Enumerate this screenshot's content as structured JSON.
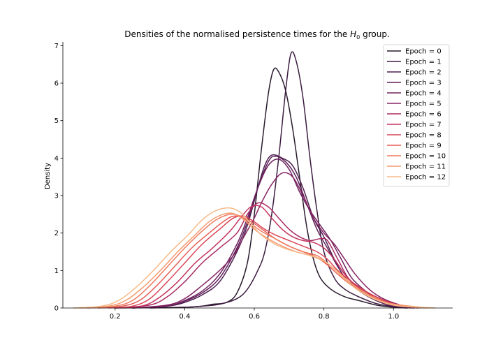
{
  "chart_data": {
    "type": "line",
    "title": "Densities of the normalised persistence times for the H0 group.",
    "title_parts": {
      "pre": "Densities of the normalised persistence times for the ",
      "math_main": "H",
      "math_sub": "0",
      "post": " group."
    },
    "xlabel": "",
    "ylabel": "Density",
    "xlim": [
      0.05,
      1.17
    ],
    "ylim": [
      0,
      7.1
    ],
    "xticks": [
      0.2,
      0.4,
      0.6,
      0.8,
      1.0
    ],
    "xtick_labels": [
      "0.2",
      "0.4",
      "0.6",
      "0.8",
      "1.0"
    ],
    "yticks": [
      0,
      1,
      2,
      3,
      4,
      5,
      6,
      7
    ],
    "ytick_labels": [
      "0",
      "1",
      "2",
      "3",
      "4",
      "5",
      "6",
      "7"
    ],
    "grid": false,
    "legend_position": "top-right",
    "series": [
      {
        "name": "Epoch = 0",
        "color": "#2a1a2e",
        "points": [
          [
            0.2,
            0
          ],
          [
            0.3,
            0.01
          ],
          [
            0.4,
            0.02
          ],
          [
            0.45,
            0.05
          ],
          [
            0.48,
            0.1
          ],
          [
            0.52,
            0.15
          ],
          [
            0.55,
            0.4
          ],
          [
            0.58,
            1.2
          ],
          [
            0.6,
            2.5
          ],
          [
            0.62,
            4.2
          ],
          [
            0.64,
            5.7
          ],
          [
            0.655,
            6.35
          ],
          [
            0.67,
            6.3
          ],
          [
            0.69,
            5.8
          ],
          [
            0.71,
            4.8
          ],
          [
            0.73,
            3.5
          ],
          [
            0.75,
            2.2
          ],
          [
            0.77,
            1.3
          ],
          [
            0.79,
            0.8
          ],
          [
            0.82,
            0.5
          ],
          [
            0.86,
            0.3
          ],
          [
            0.9,
            0.2
          ],
          [
            0.95,
            0.08
          ],
          [
            1.0,
            0.02
          ],
          [
            1.04,
            0
          ]
        ]
      },
      {
        "name": "Epoch = 1",
        "color": "#3c1c40",
        "points": [
          [
            0.3,
            0
          ],
          [
            0.4,
            0.02
          ],
          [
            0.45,
            0.05
          ],
          [
            0.5,
            0.1
          ],
          [
            0.55,
            0.25
          ],
          [
            0.58,
            0.5
          ],
          [
            0.61,
            1.0
          ],
          [
            0.63,
            1.5
          ],
          [
            0.65,
            2.5
          ],
          [
            0.67,
            4.0
          ],
          [
            0.69,
            5.8
          ],
          [
            0.705,
            6.78
          ],
          [
            0.72,
            6.6
          ],
          [
            0.74,
            5.6
          ],
          [
            0.76,
            4.0
          ],
          [
            0.78,
            2.6
          ],
          [
            0.8,
            1.5
          ],
          [
            0.83,
            0.8
          ],
          [
            0.86,
            0.5
          ],
          [
            0.9,
            0.3
          ],
          [
            0.95,
            0.12
          ],
          [
            1.0,
            0.04
          ],
          [
            1.04,
            0
          ]
        ]
      },
      {
        "name": "Epoch = 2",
        "color": "#4e1f4f",
        "points": [
          [
            0.25,
            0
          ],
          [
            0.35,
            0.05
          ],
          [
            0.4,
            0.15
          ],
          [
            0.45,
            0.35
          ],
          [
            0.5,
            0.7
          ],
          [
            0.55,
            1.5
          ],
          [
            0.58,
            2.2
          ],
          [
            0.61,
            3.2
          ],
          [
            0.63,
            3.8
          ],
          [
            0.65,
            4.08
          ],
          [
            0.68,
            4.0
          ],
          [
            0.71,
            3.8
          ],
          [
            0.74,
            3.2
          ],
          [
            0.77,
            2.4
          ],
          [
            0.8,
            1.9
          ],
          [
            0.83,
            1.3
          ],
          [
            0.86,
            0.9
          ],
          [
            0.9,
            0.5
          ],
          [
            0.95,
            0.2
          ],
          [
            1.0,
            0.05
          ],
          [
            1.05,
            0
          ]
        ]
      },
      {
        "name": "Epoch = 3",
        "color": "#5e2159",
        "points": [
          [
            0.25,
            0
          ],
          [
            0.35,
            0.05
          ],
          [
            0.4,
            0.18
          ],
          [
            0.45,
            0.4
          ],
          [
            0.5,
            0.8
          ],
          [
            0.55,
            1.6
          ],
          [
            0.58,
            2.3
          ],
          [
            0.61,
            3.2
          ],
          [
            0.64,
            3.9
          ],
          [
            0.66,
            4.05
          ],
          [
            0.69,
            3.9
          ],
          [
            0.72,
            3.5
          ],
          [
            0.75,
            2.8
          ],
          [
            0.78,
            2.1
          ],
          [
            0.81,
            1.6
          ],
          [
            0.84,
            1.1
          ],
          [
            0.87,
            0.7
          ],
          [
            0.91,
            0.4
          ],
          [
            0.95,
            0.2
          ],
          [
            1.0,
            0.05
          ],
          [
            1.06,
            0
          ]
        ]
      },
      {
        "name": "Epoch = 4",
        "color": "#6e235f",
        "points": [
          [
            0.25,
            0
          ],
          [
            0.35,
            0.06
          ],
          [
            0.4,
            0.2
          ],
          [
            0.45,
            0.45
          ],
          [
            0.5,
            0.9
          ],
          [
            0.55,
            1.7
          ],
          [
            0.58,
            2.4
          ],
          [
            0.61,
            3.2
          ],
          [
            0.64,
            3.8
          ],
          [
            0.67,
            3.97
          ],
          [
            0.7,
            3.7
          ],
          [
            0.73,
            3.1
          ],
          [
            0.76,
            2.6
          ],
          [
            0.79,
            2.2
          ],
          [
            0.82,
            1.8
          ],
          [
            0.85,
            1.3
          ],
          [
            0.88,
            0.8
          ],
          [
            0.92,
            0.45
          ],
          [
            0.96,
            0.2
          ],
          [
            1.0,
            0.06
          ],
          [
            1.06,
            0
          ]
        ]
      },
      {
        "name": "Epoch = 5",
        "color": "#852563",
        "points": [
          [
            0.25,
            0
          ],
          [
            0.35,
            0.08
          ],
          [
            0.4,
            0.25
          ],
          [
            0.45,
            0.6
          ],
          [
            0.5,
            1.0
          ],
          [
            0.54,
            1.4
          ],
          [
            0.57,
            1.9
          ],
          [
            0.6,
            2.4
          ],
          [
            0.62,
            2.8
          ],
          [
            0.65,
            3.3
          ],
          [
            0.68,
            3.6
          ],
          [
            0.71,
            3.5
          ],
          [
            0.74,
            3.0
          ],
          [
            0.77,
            2.4
          ],
          [
            0.8,
            2.0
          ],
          [
            0.83,
            1.7
          ],
          [
            0.86,
            1.3
          ],
          [
            0.89,
            0.9
          ],
          [
            0.93,
            0.5
          ],
          [
            0.97,
            0.25
          ],
          [
            1.02,
            0.08
          ],
          [
            1.07,
            0
          ]
        ]
      },
      {
        "name": "Epoch = 6",
        "color": "#a82b63",
        "points": [
          [
            0.2,
            0
          ],
          [
            0.3,
            0.08
          ],
          [
            0.35,
            0.3
          ],
          [
            0.4,
            0.7
          ],
          [
            0.45,
            1.2
          ],
          [
            0.5,
            1.6
          ],
          [
            0.55,
            2.0
          ],
          [
            0.58,
            2.5
          ],
          [
            0.61,
            2.8
          ],
          [
            0.64,
            2.7
          ],
          [
            0.67,
            2.4
          ],
          [
            0.7,
            2.1
          ],
          [
            0.73,
            1.9
          ],
          [
            0.76,
            1.8
          ],
          [
            0.79,
            1.85
          ],
          [
            0.81,
            1.8
          ],
          [
            0.84,
            1.3
          ],
          [
            0.87,
            0.8
          ],
          [
            0.91,
            0.45
          ],
          [
            0.95,
            0.25
          ],
          [
            1.0,
            0.1
          ],
          [
            1.06,
            0
          ]
        ]
      },
      {
        "name": "Epoch = 7",
        "color": "#c3345e",
        "points": [
          [
            0.2,
            0
          ],
          [
            0.28,
            0.06
          ],
          [
            0.33,
            0.3
          ],
          [
            0.38,
            0.7
          ],
          [
            0.43,
            1.2
          ],
          [
            0.48,
            1.6
          ],
          [
            0.53,
            2.05
          ],
          [
            0.56,
            2.4
          ],
          [
            0.59,
            2.7
          ],
          [
            0.62,
            2.7
          ],
          [
            0.65,
            2.4
          ],
          [
            0.68,
            2.1
          ],
          [
            0.71,
            1.9
          ],
          [
            0.74,
            1.8
          ],
          [
            0.77,
            1.75
          ],
          [
            0.8,
            1.6
          ],
          [
            0.83,
            1.3
          ],
          [
            0.86,
            0.9
          ],
          [
            0.9,
            0.55
          ],
          [
            0.95,
            0.3
          ],
          [
            1.0,
            0.12
          ],
          [
            1.07,
            0
          ]
        ]
      },
      {
        "name": "Epoch = 8",
        "color": "#d94659",
        "points": [
          [
            0.18,
            0
          ],
          [
            0.25,
            0.05
          ],
          [
            0.3,
            0.25
          ],
          [
            0.35,
            0.7
          ],
          [
            0.4,
            1.2
          ],
          [
            0.45,
            1.7
          ],
          [
            0.5,
            2.1
          ],
          [
            0.54,
            2.4
          ],
          [
            0.57,
            2.45
          ],
          [
            0.6,
            2.3
          ],
          [
            0.63,
            2.1
          ],
          [
            0.66,
            1.95
          ],
          [
            0.7,
            1.8
          ],
          [
            0.74,
            1.65
          ],
          [
            0.78,
            1.5
          ],
          [
            0.81,
            1.3
          ],
          [
            0.84,
            1.0
          ],
          [
            0.88,
            0.7
          ],
          [
            0.92,
            0.45
          ],
          [
            0.96,
            0.25
          ],
          [
            1.0,
            0.1
          ],
          [
            1.07,
            0
          ]
        ]
      },
      {
        "name": "Epoch = 9",
        "color": "#e65e57",
        "points": [
          [
            0.15,
            0
          ],
          [
            0.22,
            0.05
          ],
          [
            0.27,
            0.2
          ],
          [
            0.32,
            0.6
          ],
          [
            0.37,
            1.1
          ],
          [
            0.42,
            1.6
          ],
          [
            0.47,
            2.0
          ],
          [
            0.51,
            2.3
          ],
          [
            0.54,
            2.45
          ],
          [
            0.57,
            2.4
          ],
          [
            0.6,
            2.25
          ],
          [
            0.63,
            2.05
          ],
          [
            0.66,
            1.85
          ],
          [
            0.7,
            1.65
          ],
          [
            0.74,
            1.5
          ],
          [
            0.78,
            1.35
          ],
          [
            0.81,
            1.15
          ],
          [
            0.84,
            0.9
          ],
          [
            0.88,
            0.6
          ],
          [
            0.92,
            0.4
          ],
          [
            0.96,
            0.22
          ],
          [
            1.0,
            0.1
          ],
          [
            1.08,
            0
          ]
        ]
      },
      {
        "name": "Epoch = 10",
        "color": "#ef7a5e",
        "points": [
          [
            0.12,
            0
          ],
          [
            0.2,
            0.05
          ],
          [
            0.25,
            0.2
          ],
          [
            0.3,
            0.6
          ],
          [
            0.35,
            1.1
          ],
          [
            0.4,
            1.6
          ],
          [
            0.45,
            2.05
          ],
          [
            0.49,
            2.35
          ],
          [
            0.53,
            2.5
          ],
          [
            0.56,
            2.45
          ],
          [
            0.59,
            2.25
          ],
          [
            0.62,
            2.05
          ],
          [
            0.66,
            1.85
          ],
          [
            0.7,
            1.65
          ],
          [
            0.74,
            1.5
          ],
          [
            0.78,
            1.4
          ],
          [
            0.81,
            1.2
          ],
          [
            0.84,
            0.95
          ],
          [
            0.88,
            0.65
          ],
          [
            0.92,
            0.4
          ],
          [
            0.96,
            0.22
          ],
          [
            1.0,
            0.1
          ],
          [
            1.09,
            0
          ]
        ]
      },
      {
        "name": "Epoch = 11",
        "color": "#f49a6e",
        "points": [
          [
            0.1,
            0
          ],
          [
            0.18,
            0.05
          ],
          [
            0.23,
            0.2
          ],
          [
            0.28,
            0.55
          ],
          [
            0.33,
            1.0
          ],
          [
            0.38,
            1.5
          ],
          [
            0.43,
            1.95
          ],
          [
            0.47,
            2.3
          ],
          [
            0.51,
            2.5
          ],
          [
            0.54,
            2.52
          ],
          [
            0.57,
            2.35
          ],
          [
            0.6,
            2.1
          ],
          [
            0.64,
            1.85
          ],
          [
            0.68,
            1.65
          ],
          [
            0.72,
            1.5
          ],
          [
            0.76,
            1.4
          ],
          [
            0.8,
            1.25
          ],
          [
            0.83,
            1.05
          ],
          [
            0.86,
            0.8
          ],
          [
            0.9,
            0.5
          ],
          [
            0.94,
            0.28
          ],
          [
            0.99,
            0.12
          ],
          [
            1.1,
            0
          ]
        ]
      },
      {
        "name": "Epoch = 12",
        "color": "#f6b987",
        "points": [
          [
            0.08,
            0
          ],
          [
            0.16,
            0.05
          ],
          [
            0.21,
            0.2
          ],
          [
            0.26,
            0.55
          ],
          [
            0.31,
            1.0
          ],
          [
            0.36,
            1.5
          ],
          [
            0.41,
            1.95
          ],
          [
            0.45,
            2.35
          ],
          [
            0.49,
            2.6
          ],
          [
            0.53,
            2.67
          ],
          [
            0.56,
            2.55
          ],
          [
            0.59,
            2.25
          ],
          [
            0.62,
            1.95
          ],
          [
            0.66,
            1.7
          ],
          [
            0.7,
            1.55
          ],
          [
            0.74,
            1.45
          ],
          [
            0.78,
            1.35
          ],
          [
            0.81,
            1.2
          ],
          [
            0.84,
            0.95
          ],
          [
            0.88,
            0.6
          ],
          [
            0.92,
            0.35
          ],
          [
            0.97,
            0.15
          ],
          [
            1.02,
            0.05
          ],
          [
            1.12,
            0
          ]
        ]
      }
    ]
  }
}
